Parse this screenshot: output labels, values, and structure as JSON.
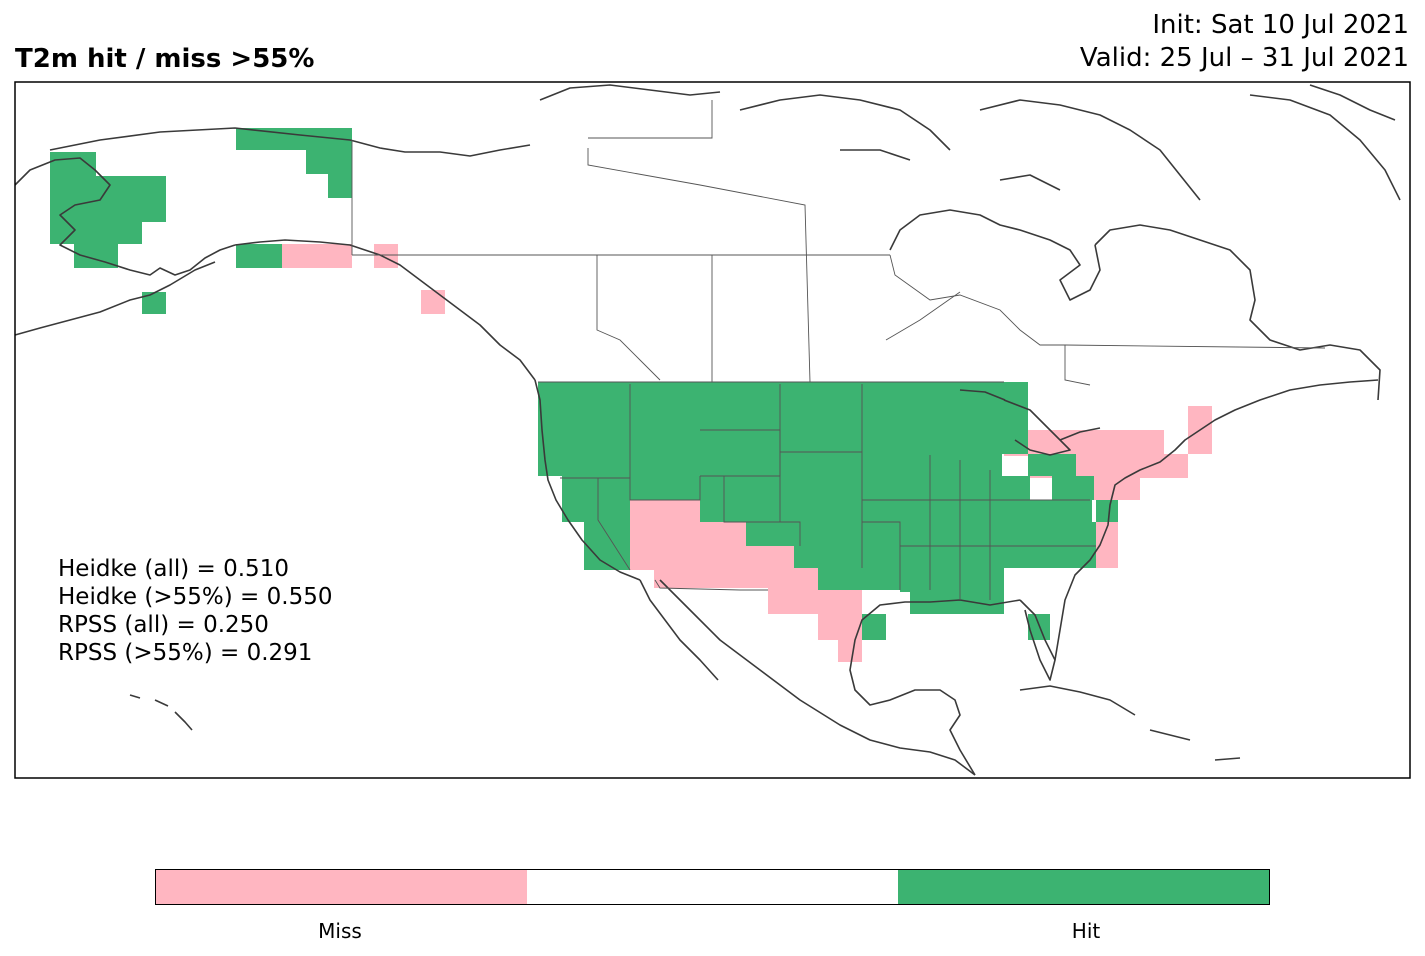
{
  "header": {
    "title": "T2m hit / miss  >55%",
    "init": "Init: Sat 10 Jul 2021",
    "valid": "Valid: 25 Jul – 31 Jul 2021"
  },
  "stats": [
    "Heidke (all) = 0.510",
    "Heidke (>55%) = 0.550",
    "RPSS (all) = 0.250",
    "RPSS (>55%) = 0.291"
  ],
  "legend": {
    "segments": [
      {
        "label": "Miss",
        "color": "#ffb6c1"
      },
      {
        "label": "",
        "color": "#ffffff"
      },
      {
        "label": "Hit",
        "color": "#3cb371"
      }
    ]
  },
  "colors": {
    "hit": "#3cb371",
    "miss": "#ffb6c1",
    "coast": "#3a3a3a"
  }
}
